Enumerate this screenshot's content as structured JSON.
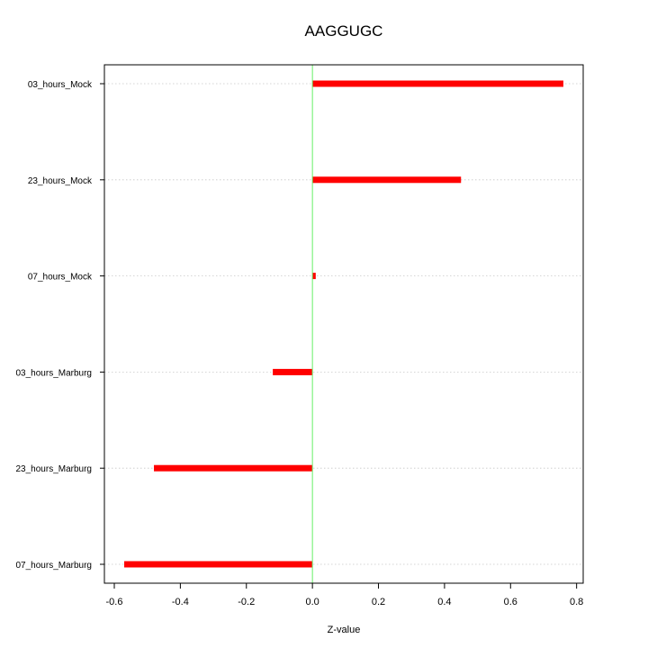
{
  "chart_data": {
    "type": "bar",
    "orientation": "horizontal",
    "title": "AAGGUGC",
    "xlabel": "Z-value",
    "ylabel": "",
    "categories": [
      "03_hours_Mock",
      "23_hours_Mock",
      "07_hours_Mock",
      "03_hours_Marburg",
      "23_hours_Marburg",
      "07_hours_Marburg"
    ],
    "values": [
      0.76,
      0.45,
      0.01,
      -0.12,
      -0.48,
      -0.57
    ],
    "xlim": [
      -0.6,
      0.8
    ],
    "xticks": [
      -0.6,
      -0.4,
      -0.2,
      0.0,
      0.2,
      0.4,
      0.6,
      0.8
    ],
    "xtick_labels": [
      "-0.6",
      "-0.4",
      "-0.2",
      "0.0",
      "0.2",
      "0.4",
      "0.6",
      "0.8"
    ],
    "grid": "horizontal dotted",
    "bar_color": "#ff0000",
    "zero_line_color": "#66ee66"
  }
}
